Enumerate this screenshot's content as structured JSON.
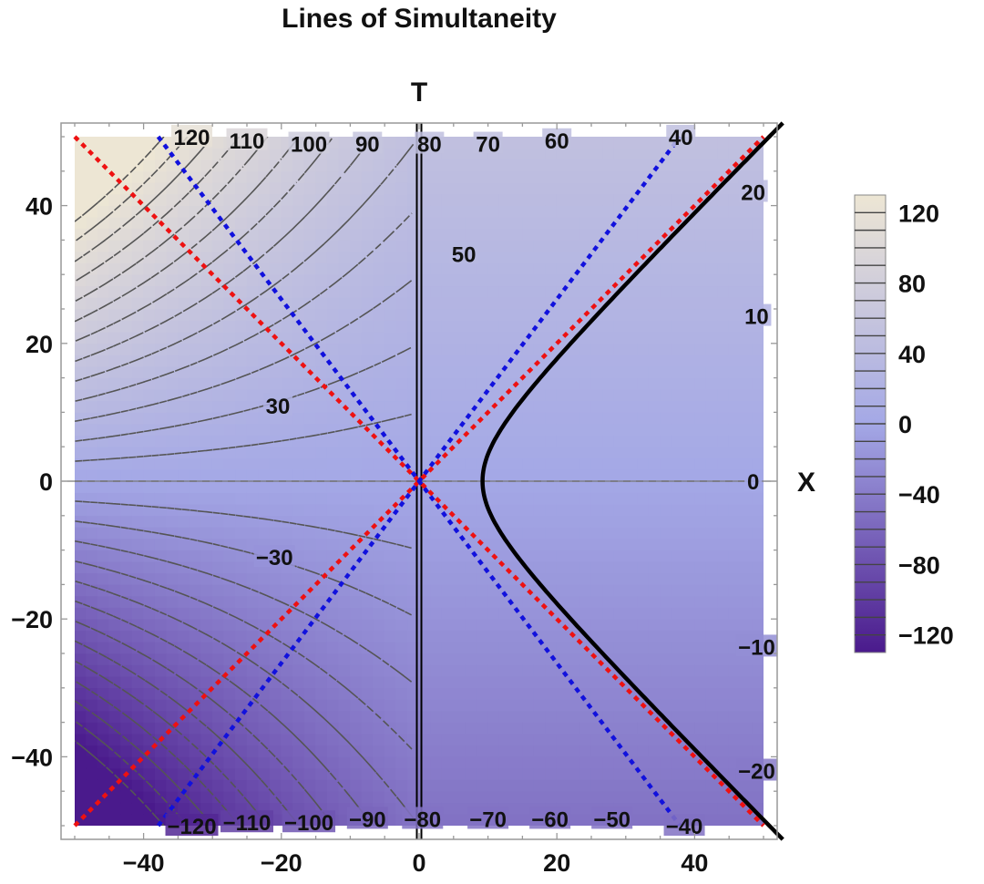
{
  "chart_data": {
    "type": "contour",
    "title": "Lines of Simultaneity",
    "xlabel": "X",
    "ylabel": "T",
    "xlim": [
      -50,
      50
    ],
    "ylim": [
      -50,
      50
    ],
    "frame_range": [
      -52,
      52
    ],
    "x_ticks": [
      -40,
      -20,
      0,
      20,
      40
    ],
    "y_ticks": [
      -40,
      -20,
      0,
      20,
      40
    ],
    "x_tick_labels": [
      "−40",
      "−20",
      "0",
      "20",
      "40"
    ],
    "y_tick_labels": [
      "−40",
      "−20",
      "0",
      "20",
      "40"
    ],
    "contour_levels": [
      -130,
      -120,
      -110,
      -100,
      -90,
      -80,
      -70,
      -60,
      -50,
      -40,
      -30,
      -20,
      -10,
      0,
      10,
      20,
      30,
      40,
      50,
      60,
      70,
      80,
      90,
      100,
      110,
      120,
      130
    ],
    "contour_style": {
      "color": "#555555",
      "dash": "dashed"
    },
    "contour_labels": [
      {
        "text": "120",
        "x": -33,
        "y": 50
      },
      {
        "text": "110",
        "x": -25,
        "y": 49.5
      },
      {
        "text": "100",
        "x": -16,
        "y": 49
      },
      {
        "text": "90",
        "x": -7.5,
        "y": 49
      },
      {
        "text": "80",
        "x": 1.5,
        "y": 49
      },
      {
        "text": "70",
        "x": 10,
        "y": 49
      },
      {
        "text": "60",
        "x": 20,
        "y": 49.5
      },
      {
        "text": "40",
        "x": 38,
        "y": 50
      },
      {
        "text": "20",
        "x": 48.5,
        "y": 42
      },
      {
        "text": "10",
        "x": 49,
        "y": 24
      },
      {
        "text": "50",
        "x": 6.5,
        "y": 33
      },
      {
        "text": "30",
        "x": -20.5,
        "y": 11
      },
      {
        "text": "0",
        "x": 48.5,
        "y": 0
      },
      {
        "text": "−10",
        "x": 49,
        "y": -24
      },
      {
        "text": "−20",
        "x": 49,
        "y": -42
      },
      {
        "text": "−30",
        "x": -21,
        "y": -11
      },
      {
        "text": "−120",
        "x": -33,
        "y": -50
      },
      {
        "text": "−110",
        "x": -25,
        "y": -49.5
      },
      {
        "text": "−100",
        "x": -16,
        "y": -49.5
      },
      {
        "text": "−90",
        "x": -7.5,
        "y": -49
      },
      {
        "text": "−80",
        "x": 0.5,
        "y": -49
      },
      {
        "text": "−70",
        "x": 10,
        "y": -49
      },
      {
        "text": "−60",
        "x": 19,
        "y": -49
      },
      {
        "text": "−50",
        "x": 28,
        "y": -49
      },
      {
        "text": "−40",
        "x": 38.5,
        "y": -50
      }
    ],
    "colorbar": {
      "range": [
        -130,
        130
      ],
      "tick_values": [
        120,
        80,
        40,
        0,
        -40,
        -80,
        -120
      ],
      "tick_labels": [
        "120",
        "80",
        "40",
        "0",
        "−40",
        "−80",
        "−120"
      ],
      "color_low": "#4a1a8c",
      "color_mid": "#a4a8e6",
      "color_high": "#ede6d4"
    },
    "lines": [
      {
        "name": "light-cone",
        "color": "#ee1111",
        "dash": "dotted",
        "slope": 1
      },
      {
        "name": "light-cone",
        "color": "#ee1111",
        "dash": "dotted",
        "slope": -1
      },
      {
        "name": "simultaneity",
        "color": "#1111dd",
        "dash": "dotted",
        "slope": 1.32
      },
      {
        "name": "simultaneity",
        "color": "#1111dd",
        "dash": "dotted",
        "slope": -1.32
      }
    ],
    "hyperbola": {
      "a": 9.2,
      "t_range": [
        -52,
        52
      ],
      "color": "#000000"
    },
    "worldline_x": 0
  }
}
